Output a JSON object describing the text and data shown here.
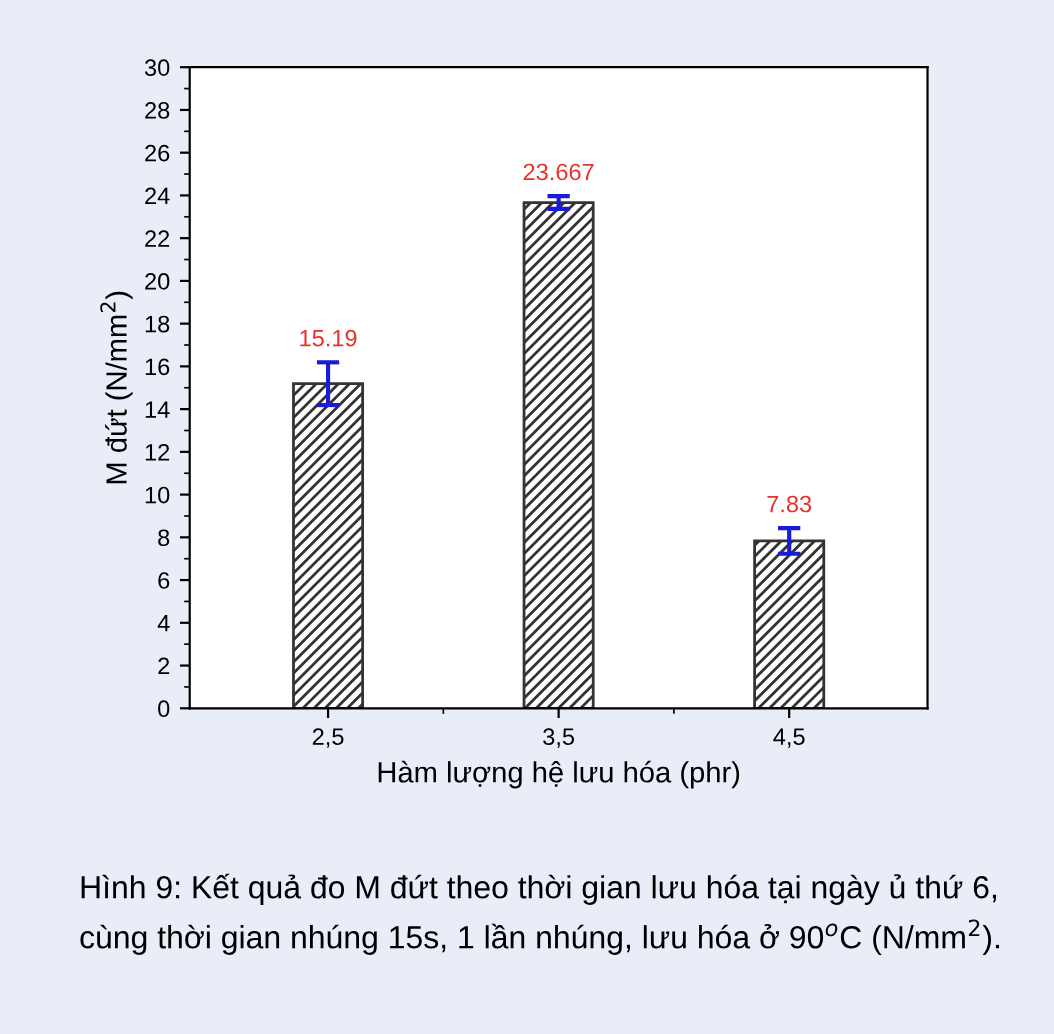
{
  "chart_data": {
    "type": "bar",
    "xlabel": "Hàm lượng hệ lưu hóa (phr)",
    "ylabel": "M đứt (N/mm$^{2}$)",
    "categories": [
      "2,5",
      "3,5",
      "4,5"
    ],
    "values": [
      15.19,
      23.667,
      7.83
    ],
    "errors": [
      1.0,
      0.3,
      0.6
    ],
    "color": "#333333",
    "data_labels": true,
    "ylim": [
      0,
      30
    ],
    "yticks": [
      0,
      2,
      4,
      6,
      8,
      10,
      12,
      14,
      16,
      18,
      20,
      22,
      24,
      26,
      28,
      30
    ],
    "grid": false,
    "annotations": [
      "Hình 9: Kết quả đo M đứt theo thời gian lưu hóa tại ngày ủ thứ 6, cùng thời gian nhúng 15s, 1 lần nhúng, lưu hóa ở 90$^{o}$C (N/mm$^{2}$)."
    ]
  }
}
